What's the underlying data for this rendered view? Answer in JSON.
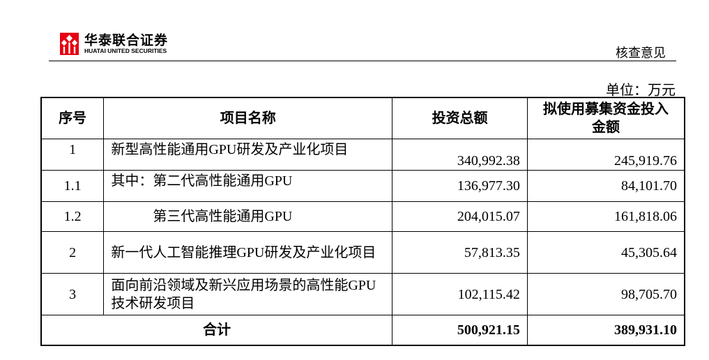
{
  "header": {
    "logo_cn": "华泰联合证券",
    "logo_en": "HUATAI UNITED SECURITIES",
    "logo_color": "#e60012",
    "section": "核查意见"
  },
  "unit": "单位：万元",
  "table": {
    "columns": [
      "序号",
      "项目名称",
      "投资总额",
      "拟使用募集资金投入金额"
    ],
    "rows": [
      {
        "no": "1",
        "name": "新型高性能通用GPU研发及产业化项目",
        "total": "340,992.38",
        "raised": "245,919.76"
      },
      {
        "no": "1.1",
        "name": "其中：第二代高性能通用GPU",
        "total": "136,977.30",
        "raised": "84,101.70"
      },
      {
        "no": "1.2",
        "name": "第三代高性能通用GPU",
        "total": "204,015.07",
        "raised": "161,818.06"
      },
      {
        "no": "2",
        "name": "新一代人工智能推理GPU研发及产业化项目",
        "total": "57,813.35",
        "raised": "45,305.64"
      },
      {
        "no": "3",
        "name": "面向前沿领域及新兴应用场景的高性能GPU技术研发项目",
        "total": "102,115.42",
        "raised": "98,705.70"
      }
    ],
    "total": {
      "label": "合计",
      "total": "500,921.15",
      "raised": "389,931.10"
    }
  }
}
